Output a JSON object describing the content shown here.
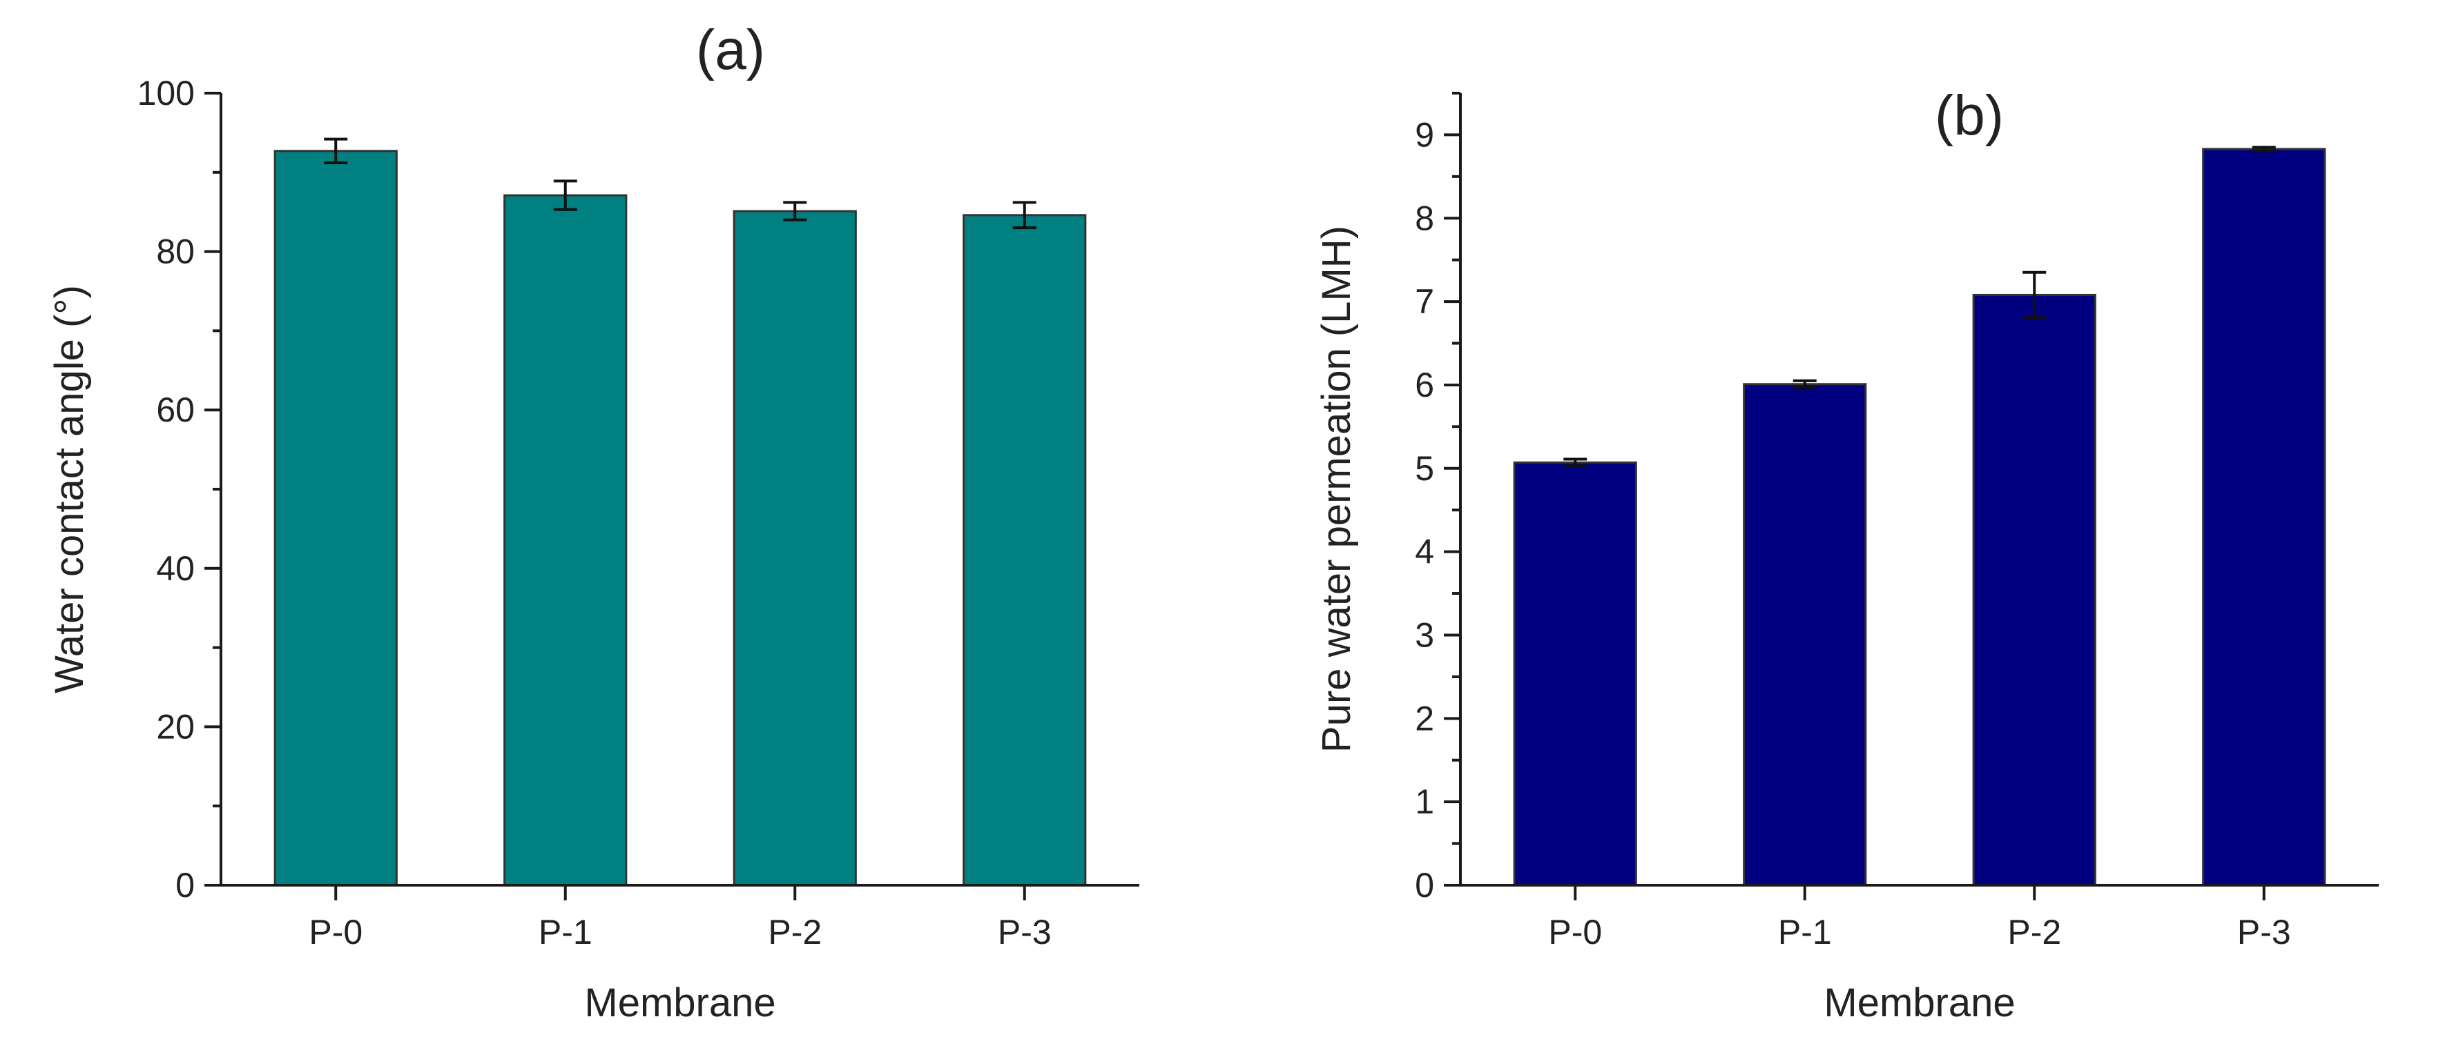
{
  "chart_data": [
    {
      "type": "bar",
      "panel_label": "(a)",
      "categories": [
        "P-0",
        "P-1",
        "P-2",
        "P-3"
      ],
      "values": [
        92.7,
        87.1,
        85.1,
        84.6
      ],
      "errors": [
        1.5,
        1.8,
        1.1,
        1.6
      ],
      "xlabel": "Membrane",
      "ylabel": "Water contact angle (°)",
      "ylim": [
        0,
        100
      ],
      "yticks": [
        0,
        20,
        40,
        60,
        80,
        100
      ],
      "yminor_step": 10,
      "bar_color": "#008080",
      "grid": false
    },
    {
      "type": "bar",
      "panel_label": "(b)",
      "categories": [
        "P-0",
        "P-1",
        "P-2",
        "P-3"
      ],
      "values": [
        5.07,
        6.01,
        7.08,
        8.83
      ],
      "errors": [
        0.04,
        0.04,
        0.27,
        0.02
      ],
      "xlabel": "Membrane",
      "ylabel": "Pure water permeation (LMH)",
      "ylim": [
        0,
        9.5
      ],
      "yticks": [
        0,
        1,
        2,
        3,
        4,
        5,
        6,
        7,
        8,
        9
      ],
      "yminor_step": 0.5,
      "bar_color": "#000080",
      "grid": false
    }
  ]
}
